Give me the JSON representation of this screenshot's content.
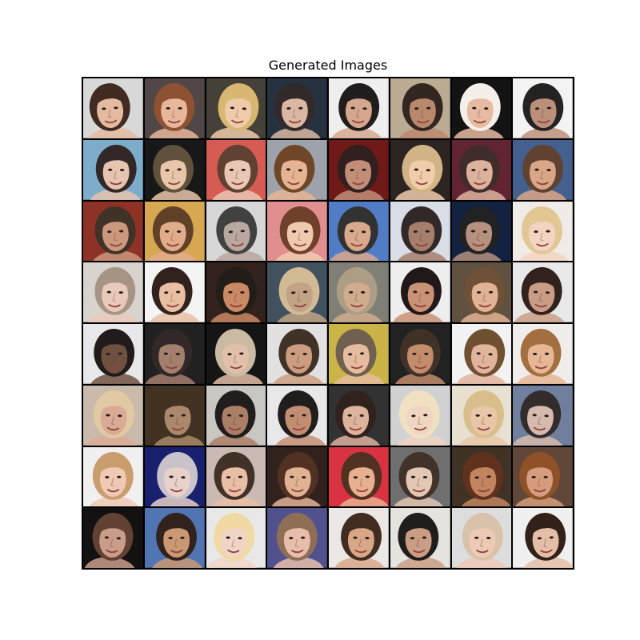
{
  "figure": {
    "title": "Generated Images"
  },
  "grid": {
    "rows": 8,
    "cols": 8,
    "tile_count": 64,
    "subject": "generated face samples",
    "tiles": [
      {
        "bg": "#d7d7d7",
        "skin": "#e3b99d",
        "hair": "#3a2218"
      },
      {
        "bg": "#4a4040",
        "skin": "#e8b596",
        "hair": "#8a4a2a"
      },
      {
        "bg": "#3f3a30",
        "skin": "#f0c9a6",
        "hair": "#d6b56d"
      },
      {
        "bg": "#1f2a3a",
        "skin": "#d9b59f",
        "hair": "#2a2222"
      },
      {
        "bg": "#eeeeee",
        "skin": "#d3a48a",
        "hair": "#1a1414"
      },
      {
        "bg": "#b9a88f",
        "skin": "#b88568",
        "hair": "#2a1e18"
      },
      {
        "bg": "#0a0a0a",
        "skin": "#e6b9a0",
        "hair": "#f4efe8"
      },
      {
        "bg": "#f3f3f3",
        "skin": "#b98c76",
        "hair": "#1d1a1a"
      },
      {
        "bg": "#79a9c9",
        "skin": "#e5c2ad",
        "hair": "#2b2020"
      },
      {
        "bg": "#0f0f0f",
        "skin": "#e8c4a6",
        "hair": "#5a4a36"
      },
      {
        "bg": "#d4554c",
        "skin": "#e9c5b2",
        "hair": "#5a3a2a"
      },
      {
        "bg": "#9ba0a8",
        "skin": "#e5b18f",
        "hair": "#6a4020"
      },
      {
        "bg": "#6a1010",
        "skin": "#c18a73",
        "hair": "#2a1616"
      },
      {
        "bg": "#241c18",
        "skin": "#f0caa8",
        "hair": "#d0b080"
      },
      {
        "bg": "#5c1c2a",
        "skin": "#dcaf99",
        "hair": "#3a2424"
      },
      {
        "bg": "#3c5a8a",
        "skin": "#d9a384",
        "hair": "#5a3b28"
      },
      {
        "bg": "#8a2a1e",
        "skin": "#c99479",
        "hair": "#3a2a20"
      },
      {
        "bg": "#d7a44b",
        "skin": "#e0a985",
        "hair": "#5a3a20"
      },
      {
        "bg": "#d6d6d6",
        "skin": "#b6a59c",
        "hair": "#3a3a3a"
      },
      {
        "bg": "#e08a8a",
        "skin": "#f0c8ac",
        "hair": "#6a3a22"
      },
      {
        "bg": "#4a78c4",
        "skin": "#d8a688",
        "hair": "#2a2a2a"
      },
      {
        "bg": "#d8dce4",
        "skin": "#a37a66",
        "hair": "#2a2020"
      },
      {
        "bg": "#0a1a3a",
        "skin": "#b38d7a",
        "hair": "#1a1a1a"
      },
      {
        "bg": "#f0ebe5",
        "skin": "#f3d3bf",
        "hair": "#e0c590"
      },
      {
        "bg": "#d8d2cc",
        "skin": "#e9c8b8",
        "hair": "#a59080"
      },
      {
        "bg": "#f4f4f4",
        "skin": "#e8bda0",
        "hair": "#2a1a14"
      },
      {
        "bg": "#2a1a12",
        "skin": "#c8845e",
        "hair": "#1a1410"
      },
      {
        "bg": "#3a4a58",
        "skin": "#c0a080",
        "hair": "#d0b890"
      },
      {
        "bg": "#7a7a70",
        "skin": "#d0a88a",
        "hair": "#aa9a80"
      },
      {
        "bg": "#eeeeee",
        "skin": "#c88e70",
        "hair": "#181010"
      },
      {
        "bg": "#5a4a3a",
        "skin": "#e0b090",
        "hair": "#6a4a30"
      },
      {
        "bg": "#e8e8e8",
        "skin": "#c79a80",
        "hair": "#2a1a14"
      },
      {
        "bg": "#e8e8ea",
        "skin": "#6a4a3a",
        "hair": "#1a1212"
      },
      {
        "bg": "#181818",
        "skin": "#a07a68",
        "hair": "#2a2020"
      },
      {
        "bg": "#0c0c0c",
        "skin": "#e0bda5",
        "hair": "#c8b8a0"
      },
      {
        "bg": "#e0e0e0",
        "skin": "#c99a7c",
        "hair": "#3a2a20"
      },
      {
        "bg": "#c8b040",
        "skin": "#e4ba9c",
        "hair": "#6a5a48"
      },
      {
        "bg": "#1a1a1a",
        "skin": "#c08868",
        "hair": "#3a2a20"
      },
      {
        "bg": "#f2f2f2",
        "skin": "#e0b298",
        "hair": "#6a4a2a"
      },
      {
        "bg": "#f0ecea",
        "skin": "#e6b490",
        "hair": "#a06a3a"
      },
      {
        "bg": "#c8b8a8",
        "skin": "#d9a890",
        "hair": "#e0c8a0"
      },
      {
        "bg": "#3a2a1a",
        "skin": "#a88466",
        "hair": "#3a2a1a"
      },
      {
        "bg": "#c8c4c0",
        "skin": "#a87a60",
        "hair": "#1a1414"
      },
      {
        "bg": "#e8e8ea",
        "skin": "#c08a6e",
        "hair": "#1a1414"
      },
      {
        "bg": "#2a2a2a",
        "skin": "#ddb09a",
        "hair": "#2a1a14"
      },
      {
        "bg": "#d0d0d0",
        "skin": "#f0d4c0",
        "hair": "#f0e0c0"
      },
      {
        "bg": "#e8e0d0",
        "skin": "#e8c4a4",
        "hair": "#d8bc88"
      },
      {
        "bg": "#6a7a9a",
        "skin": "#d4b8aa",
        "hair": "#2a2424"
      },
      {
        "bg": "#f0f0f0",
        "skin": "#efc7b0",
        "hair": "#c89a6a"
      },
      {
        "bg": "#10186a",
        "skin": "#e8d0c8",
        "hair": "#c8c0c8"
      },
      {
        "bg": "#c8b8b0",
        "skin": "#e8bca2",
        "hair": "#3a2a20"
      },
      {
        "bg": "#2a1a14",
        "skin": "#e0b090",
        "hair": "#4a2a1a"
      },
      {
        "bg": "#d82a3a",
        "skin": "#e6ad8c",
        "hair": "#4a2a1a"
      },
      {
        "bg": "#6a6a6a",
        "skin": "#e2c4b0",
        "hair": "#3a2a22"
      },
      {
        "bg": "#3a2a1e",
        "skin": "#c0805a",
        "hair": "#5a2a14"
      },
      {
        "bg": "#5a4030",
        "skin": "#d49a78",
        "hair": "#8a4a20"
      },
      {
        "bg": "#0a0808",
        "skin": "#c89a86",
        "hair": "#5a3a2a"
      },
      {
        "bg": "#4a70b0",
        "skin": "#c8946e",
        "hair": "#2a1a14"
      },
      {
        "bg": "#e8e8e8",
        "skin": "#f0d4c4",
        "hair": "#f0d8a0"
      },
      {
        "bg": "#4a4a8a",
        "skin": "#e8bca8",
        "hair": "#8a6a50"
      },
      {
        "bg": "#eae6e4",
        "skin": "#d8a484",
        "hair": "#3a2418"
      },
      {
        "bg": "#e4e2dc",
        "skin": "#c89a80",
        "hair": "#1a1414"
      },
      {
        "bg": "#dcdcdc",
        "skin": "#ecc8b4",
        "hair": "#d8c0a8"
      },
      {
        "bg": "#f0f0f0",
        "skin": "#e4bca4",
        "hair": "#2a1810"
      }
    ]
  }
}
